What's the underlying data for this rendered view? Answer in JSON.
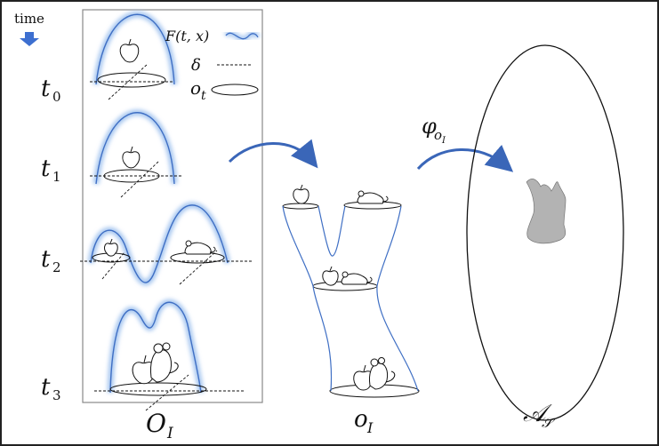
{
  "time_label": "time",
  "time_steps": [
    {
      "base": "t",
      "sub": "0"
    },
    {
      "base": "t",
      "sub": "1"
    },
    {
      "base": "t",
      "sub": "2"
    },
    {
      "base": "t",
      "sub": "3"
    }
  ],
  "legend": {
    "field": "F(t, x)",
    "delta": "δ",
    "observation_base": "o",
    "observation_sub": "t"
  },
  "labels": {
    "left_panel_base": "O",
    "left_panel_sub": "I",
    "middle_base": "o",
    "middle_sub": "I",
    "right_base": "𝒜",
    "right_sub": "𝒮",
    "map_base": "φ",
    "map_sub_base": "o",
    "map_sub_sub": "I"
  },
  "colors": {
    "field_stroke": "#3f6fc4",
    "field_glow": "#a9c8f0",
    "arrow": "#3a66b8",
    "time_arrow": "#3d6fd0",
    "blob": "#b3b3b3",
    "panel_border": "#888888"
  }
}
